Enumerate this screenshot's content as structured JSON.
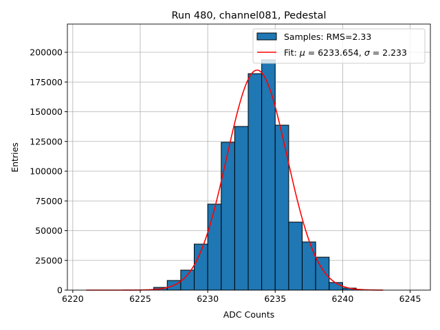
{
  "chart_data": {
    "type": "bar",
    "title": "Run 480, channel081, Pedestal",
    "xlabel": "ADC Counts",
    "ylabel": "Entries",
    "xlim": [
      6219.6,
      6246.5
    ],
    "ylim": [
      0,
      223700
    ],
    "grid": true,
    "legend_placement": "upper-right",
    "x_ticks": [
      6220,
      6225,
      6230,
      6235,
      6240,
      6245
    ],
    "y_ticks": [
      0,
      25000,
      50000,
      75000,
      100000,
      125000,
      150000,
      175000,
      200000
    ],
    "series": [
      {
        "name": "Samples: RMS=2.33",
        "type": "histogram",
        "color": "#1f77b4",
        "bin_width": 1,
        "bin_starts": [
          6226,
          6227,
          6228,
          6229,
          6230,
          6231,
          6232,
          6233,
          6234,
          6235,
          6236,
          6237,
          6238,
          6239,
          6240,
          6241
        ],
        "values": [
          2300,
          8100,
          16800,
          38700,
          72300,
          124300,
          137600,
          182000,
          193600,
          138700,
          57200,
          40500,
          27700,
          6400,
          1700,
          300
        ]
      },
      {
        "name_prefix": "Fit: ",
        "name_mu": "μ",
        "name_mid": " = 6233.654, ",
        "name_sigma": "σ",
        "name_suffix": " = 2.233",
        "type": "line",
        "color": "#ff0000",
        "mu": 6233.654,
        "sigma": 2.233,
        "amplitude": 185000,
        "x_range": [
          6221,
          6243
        ]
      }
    ]
  }
}
